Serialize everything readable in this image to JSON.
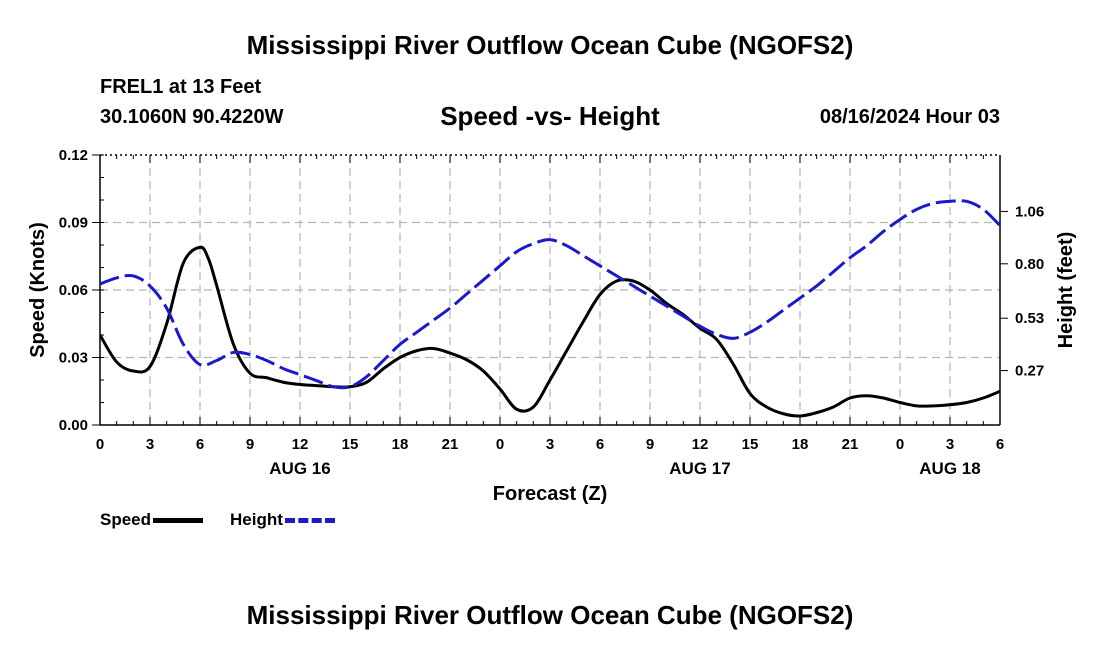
{
  "header": {
    "title": "Mississippi River Outflow Ocean Cube (NGOFS2)",
    "station": "FREL1 at 13 Feet",
    "coordinates": "30.1060N  90.4220W",
    "subtitle": "Speed -vs- Height",
    "datetime": "08/16/2024 Hour 03"
  },
  "footer": {
    "title": "Mississippi River Outflow Ocean Cube (NGOFS2)"
  },
  "legend": {
    "speed_label": "Speed",
    "height_label": "Height"
  },
  "colors": {
    "speed": "#000000",
    "height": "#1a1acc",
    "grid": "#b4b4b4"
  },
  "chart_data": {
    "type": "line",
    "title": "Speed -vs- Height",
    "xlabel": "Forecast (Z)",
    "ylabel": "Speed (Knots)",
    "y2label": "Height (feet)",
    "xlim": [
      0,
      54
    ],
    "ylim": [
      0,
      0.12
    ],
    "y2lim": [
      0.0,
      1.34
    ],
    "x_ticks": [
      0,
      3,
      6,
      9,
      12,
      15,
      18,
      21,
      24,
      27,
      30,
      33,
      36,
      39,
      42,
      45,
      48,
      51,
      54
    ],
    "x_tick_labels": [
      "0",
      "3",
      "6",
      "9",
      "12",
      "15",
      "18",
      "21",
      "0",
      "3",
      "6",
      "9",
      "12",
      "15",
      "18",
      "21",
      "0",
      "3",
      "6"
    ],
    "day_labels": [
      {
        "x": 12,
        "label": "AUG 16"
      },
      {
        "x": 36,
        "label": "AUG 17"
      },
      {
        "x": 51,
        "label": "AUG 18"
      }
    ],
    "y_ticks": [
      0,
      0.03,
      0.06,
      0.09,
      0.12
    ],
    "y_tick_labels": [
      "0.00",
      "0.03",
      "0.06",
      "0.09",
      "0.12"
    ],
    "y2_ticks": [
      0.27,
      0.53,
      0.8,
      1.06
    ],
    "y2_tick_labels": [
      "0.27",
      "0.53",
      "0.80",
      "1.06"
    ],
    "grid": true,
    "series": [
      {
        "name": "Speed",
        "axis": "left",
        "style": "solid",
        "x": [
          0,
          1,
          2,
          3,
          4,
          5,
          6,
          6.5,
          7,
          8,
          9,
          10,
          11,
          12,
          13,
          14,
          15,
          16,
          17,
          18,
          19,
          20,
          21,
          22,
          23,
          24,
          25,
          26,
          27,
          28,
          29,
          30,
          31,
          32,
          33,
          34,
          35,
          36,
          37,
          38,
          39,
          40,
          41,
          42,
          43,
          44,
          45,
          46,
          47,
          48,
          49,
          50,
          51,
          52,
          53,
          54
        ],
        "y": [
          0.04,
          0.028,
          0.024,
          0.026,
          0.045,
          0.072,
          0.079,
          0.074,
          0.062,
          0.036,
          0.023,
          0.021,
          0.019,
          0.018,
          0.0175,
          0.017,
          0.017,
          0.019,
          0.025,
          0.03,
          0.033,
          0.034,
          0.032,
          0.029,
          0.024,
          0.016,
          0.007,
          0.008,
          0.02,
          0.033,
          0.046,
          0.058,
          0.064,
          0.064,
          0.06,
          0.054,
          0.049,
          0.043,
          0.038,
          0.027,
          0.014,
          0.008,
          0.005,
          0.004,
          0.0055,
          0.008,
          0.012,
          0.013,
          0.012,
          0.01,
          0.0085,
          0.0085,
          0.009,
          0.01,
          0.012,
          0.015
        ]
      },
      {
        "name": "Height",
        "axis": "right",
        "style": "dashed",
        "x": [
          0,
          1,
          2,
          3,
          4,
          5,
          6,
          7,
          8,
          9,
          10,
          11,
          12,
          13,
          14,
          15,
          16,
          17,
          18,
          19,
          20,
          21,
          22,
          23,
          24,
          25,
          26,
          27,
          28,
          29,
          30,
          31,
          32,
          33,
          34,
          35,
          36,
          37,
          38,
          39,
          40,
          41,
          42,
          43,
          44,
          45,
          46,
          47,
          48,
          49,
          50,
          51,
          52,
          53,
          54
        ],
        "y": [
          0.7,
          0.73,
          0.74,
          0.69,
          0.58,
          0.4,
          0.3,
          0.32,
          0.36,
          0.35,
          0.32,
          0.28,
          0.25,
          0.22,
          0.19,
          0.19,
          0.24,
          0.32,
          0.4,
          0.46,
          0.52,
          0.58,
          0.65,
          0.72,
          0.79,
          0.86,
          0.9,
          0.92,
          0.89,
          0.84,
          0.79,
          0.74,
          0.69,
          0.64,
          0.59,
          0.54,
          0.49,
          0.45,
          0.43,
          0.46,
          0.51,
          0.57,
          0.63,
          0.69,
          0.76,
          0.83,
          0.89,
          0.96,
          1.02,
          1.07,
          1.1,
          1.11,
          1.11,
          1.07,
          0.99
        ]
      }
    ]
  }
}
